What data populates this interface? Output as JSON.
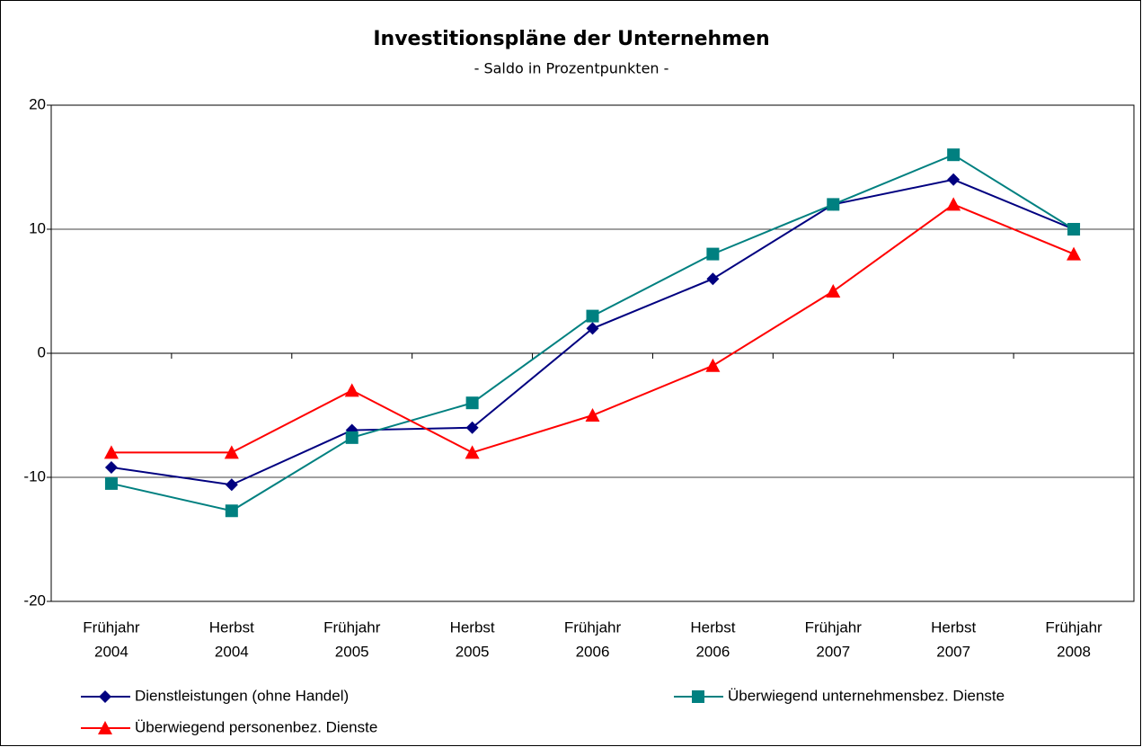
{
  "chart_data": {
    "type": "line",
    "title": "Investitionspläne der Unternehmen",
    "subtitle": "- Saldo in Prozentpunkten -",
    "categories": [
      [
        "Frühjahr",
        "2004"
      ],
      [
        "Herbst",
        "2004"
      ],
      [
        "Frühjahr",
        "2005"
      ],
      [
        "Herbst",
        "2005"
      ],
      [
        "Frühjahr",
        "2006"
      ],
      [
        "Herbst",
        "2006"
      ],
      [
        "Frühjahr",
        "2007"
      ],
      [
        "Herbst",
        "2007"
      ],
      [
        "Frühjahr",
        "2008"
      ]
    ],
    "series": [
      {
        "name": "Dienstleistungen (ohne Handel)",
        "color": "#000080",
        "marker": "diamond",
        "values": [
          -9.2,
          -10.6,
          -6.2,
          -6,
          2,
          6,
          12,
          14,
          10
        ]
      },
      {
        "name": "Überwiegend unternehmensbez. Dienste",
        "color": "#008080",
        "marker": "square",
        "values": [
          -10.5,
          -12.7,
          -6.8,
          -4,
          3,
          8,
          12,
          16,
          10
        ]
      },
      {
        "name": "Überwiegend personenbez. Dienste",
        "color": "#ff0000",
        "marker": "triangle",
        "values": [
          -8,
          -8,
          -3,
          -8,
          -5,
          -1,
          5,
          12,
          8
        ]
      }
    ],
    "ylim": [
      -20,
      20
    ],
    "yticks": [
      -20,
      -10,
      0,
      10,
      20
    ],
    "grid": true
  }
}
